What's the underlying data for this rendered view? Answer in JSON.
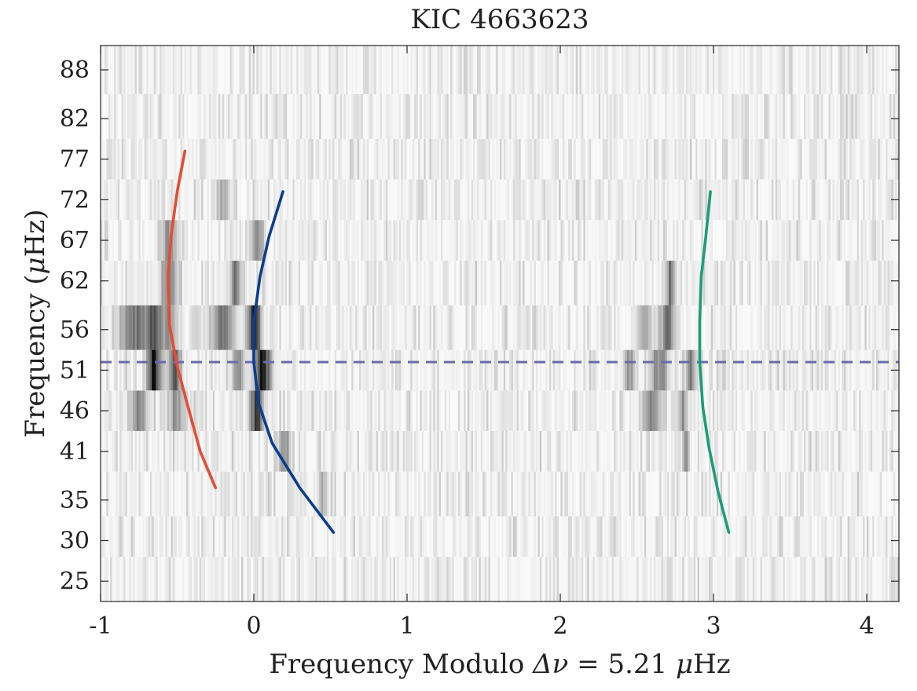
{
  "chart_data": {
    "type": "heatmap",
    "title": "KIC 4663623",
    "xlabel_prefix": "Frequency Modulo",
    "xlabel_symbol": "Δν",
    "xlabel_value": " = 5.21 ",
    "xlabel_unit_mu": "μ",
    "xlabel_unit": "Hz",
    "ylabel_main": "Frequency (",
    "ylabel_mu": "μ",
    "ylabel_unit": "Hz)",
    "xlim": [
      -1,
      4.21
    ],
    "ylim": [
      22.5,
      91.0
    ],
    "x_ticks": [
      -1,
      0,
      1,
      2,
      3,
      4
    ],
    "x_tick_labels": [
      "-1",
      "0",
      "1",
      "2",
      "3",
      "4"
    ],
    "y_ticks": [
      25,
      30,
      35,
      41,
      46,
      51,
      56,
      62,
      67,
      72,
      77,
      82,
      88
    ],
    "y_tick_labels": [
      "25",
      "30",
      "35",
      "41",
      "46",
      "51",
      "56",
      "62",
      "67",
      "72",
      "77",
      "82",
      "88"
    ],
    "heatmap_rows": [
      {
        "low": 22.5,
        "high": 28.0
      },
      {
        "low": 28.0,
        "high": 33.0
      },
      {
        "low": 33.0,
        "high": 38.5
      },
      {
        "low": 38.5,
        "high": 43.5
      },
      {
        "low": 43.5,
        "high": 48.5
      },
      {
        "low": 48.5,
        "high": 53.5
      },
      {
        "low": 53.5,
        "high": 59.0
      },
      {
        "low": 59.0,
        "high": 64.5
      },
      {
        "low": 64.5,
        "high": 69.5
      },
      {
        "low": 69.5,
        "high": 74.5
      },
      {
        "low": 74.5,
        "high": 79.5
      },
      {
        "low": 79.5,
        "high": 85.0
      },
      {
        "low": 85.0,
        "high": 91.0
      }
    ],
    "power_ridges": [
      {
        "row": 6,
        "x": -0.78,
        "w": 0.09,
        "i": 0.55
      },
      {
        "row": 6,
        "x": -0.65,
        "w": 0.05,
        "i": 0.65
      },
      {
        "row": 6,
        "x": -0.55,
        "w": 0.05,
        "i": 0.45
      },
      {
        "row": 6,
        "x": -0.2,
        "w": 0.07,
        "i": 0.6
      },
      {
        "row": 6,
        "x": 0.0,
        "w": 0.04,
        "i": 1.0
      },
      {
        "row": 6,
        "x": 2.55,
        "w": 0.05,
        "i": 0.35
      },
      {
        "row": 6,
        "x": 2.7,
        "w": 0.04,
        "i": 0.55
      },
      {
        "row": 5,
        "x": -0.65,
        "w": 0.04,
        "i": 1.0
      },
      {
        "row": 5,
        "x": -0.52,
        "w": 0.04,
        "i": 0.6
      },
      {
        "row": 5,
        "x": -0.1,
        "w": 0.04,
        "i": 0.45
      },
      {
        "row": 5,
        "x": 0.06,
        "w": 0.05,
        "i": 0.95
      },
      {
        "row": 5,
        "x": 2.45,
        "w": 0.04,
        "i": 0.35
      },
      {
        "row": 5,
        "x": 2.65,
        "w": 0.05,
        "i": 0.5
      },
      {
        "row": 5,
        "x": 2.85,
        "w": 0.03,
        "i": 0.45
      },
      {
        "row": 4,
        "x": -0.75,
        "w": 0.05,
        "i": 0.5
      },
      {
        "row": 4,
        "x": -0.5,
        "w": 0.05,
        "i": 0.4
      },
      {
        "row": 4,
        "x": 0.02,
        "w": 0.04,
        "i": 0.85
      },
      {
        "row": 4,
        "x": 2.6,
        "w": 0.06,
        "i": 0.45
      },
      {
        "row": 4,
        "x": 2.8,
        "w": 0.03,
        "i": 0.4
      },
      {
        "row": 7,
        "x": -0.55,
        "w": 0.05,
        "i": 0.45
      },
      {
        "row": 7,
        "x": -0.12,
        "w": 0.03,
        "i": 0.6
      },
      {
        "row": 7,
        "x": 2.72,
        "w": 0.03,
        "i": 0.5
      },
      {
        "row": 8,
        "x": -0.55,
        "w": 0.05,
        "i": 0.4
      },
      {
        "row": 8,
        "x": 0.02,
        "w": 0.04,
        "i": 0.45
      },
      {
        "row": 3,
        "x": 0.2,
        "w": 0.04,
        "i": 0.4
      },
      {
        "row": 3,
        "x": 2.82,
        "w": 0.02,
        "i": 0.55
      },
      {
        "row": 9,
        "x": -0.2,
        "w": 0.04,
        "i": 0.25
      },
      {
        "row": 2,
        "x": 0.45,
        "w": 0.03,
        "i": 0.25
      }
    ],
    "series": [
      {
        "name": "red",
        "color": "#e64b35",
        "points": [
          [
            -0.25,
            36.5
          ],
          [
            -0.35,
            41.0
          ],
          [
            -0.43,
            46.5
          ],
          [
            -0.5,
            51.5
          ],
          [
            -0.55,
            56.5
          ],
          [
            -0.56,
            62.5
          ],
          [
            -0.54,
            67.5
          ],
          [
            -0.5,
            73.0
          ],
          [
            -0.45,
            78.0
          ]
        ]
      },
      {
        "name": "blue",
        "color": "#0b3d91",
        "points": [
          [
            0.52,
            31.0
          ],
          [
            0.3,
            36.5
          ],
          [
            0.12,
            42.0
          ],
          [
            0.03,
            47.0
          ],
          [
            0.0,
            52.0
          ],
          [
            0.0,
            57.0
          ],
          [
            0.04,
            62.5
          ],
          [
            0.1,
            67.5
          ],
          [
            0.19,
            73.0
          ]
        ]
      },
      {
        "name": "green",
        "color": "#1b9e77",
        "points": [
          [
            3.1,
            31.0
          ],
          [
            3.03,
            36.0
          ],
          [
            2.97,
            41.5
          ],
          [
            2.93,
            46.5
          ],
          [
            2.91,
            52.0
          ],
          [
            2.91,
            57.0
          ],
          [
            2.92,
            62.5
          ],
          [
            2.95,
            67.5
          ],
          [
            2.98,
            73.0
          ]
        ]
      }
    ],
    "reference_line": {
      "y": 52.0,
      "style": "dashed",
      "color": "#6a6aaa"
    }
  }
}
